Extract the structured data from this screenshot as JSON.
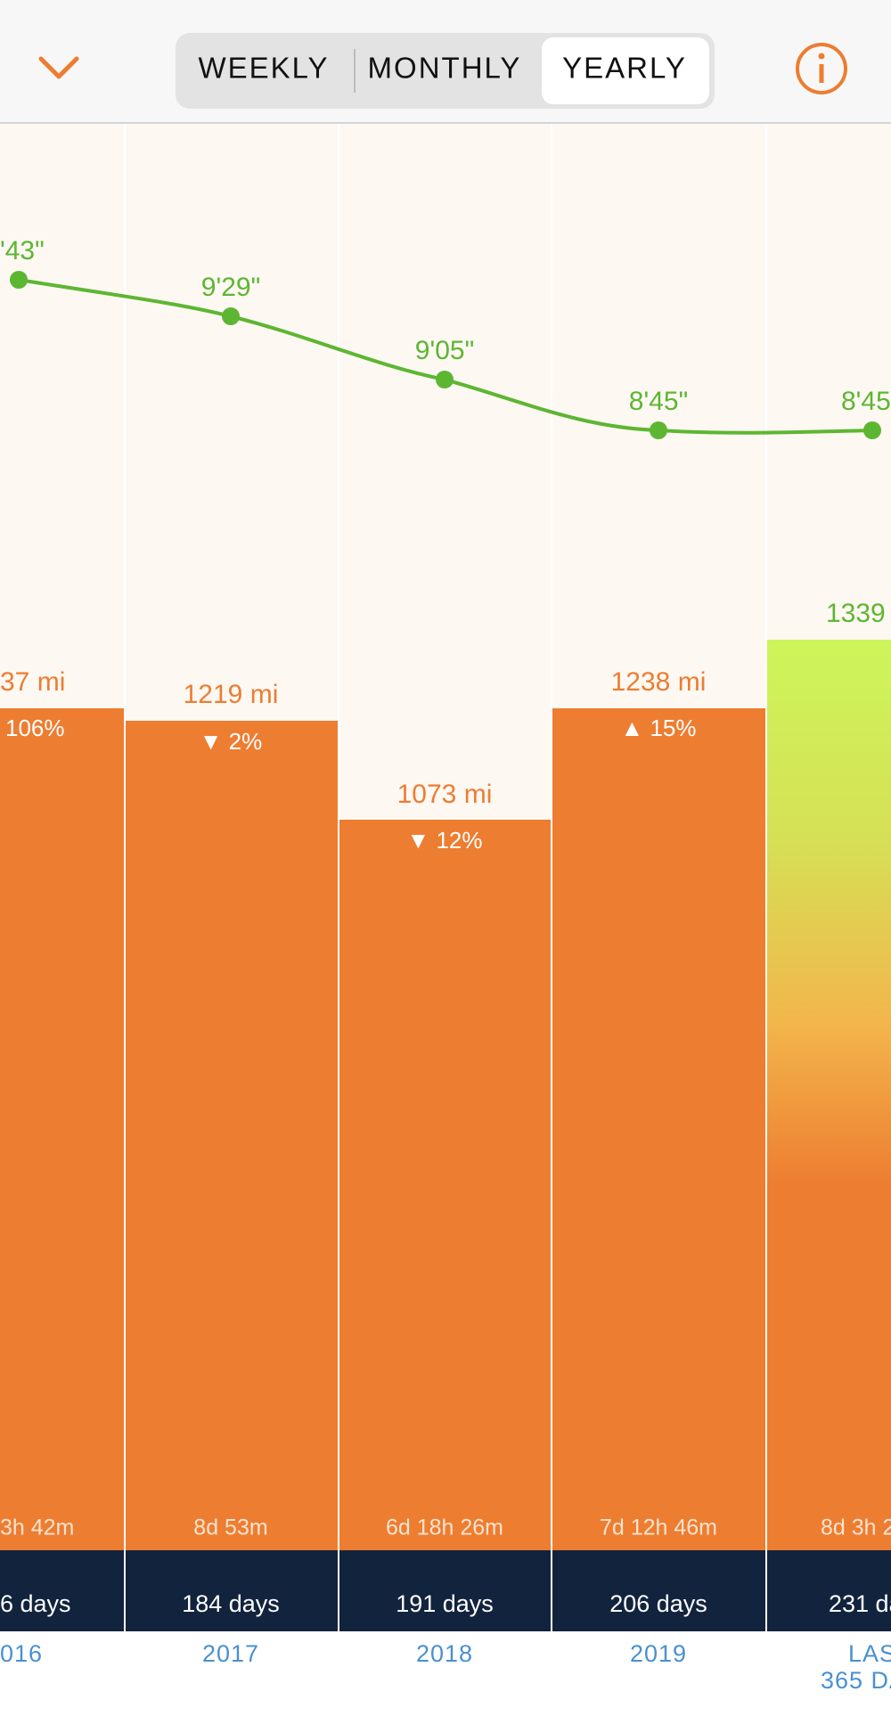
{
  "header": {
    "tabs": [
      "WEEKLY",
      "MONTHLY",
      "YEARLY"
    ],
    "selected_tab": "YEARLY"
  },
  "columns": [
    {
      "pace": "'43\"",
      "distance": "37 mi",
      "change": "106%",
      "time": "3h 42m",
      "days": "6 days",
      "period": [
        "016"
      ]
    },
    {
      "pace": "9'29\"",
      "distance": "1219 mi",
      "change": "▼ 2%",
      "time": "8d 53m",
      "days": "184 days",
      "period": [
        "2017"
      ]
    },
    {
      "pace": "9'05\"",
      "distance": "1073 mi",
      "change": "▼ 12%",
      "time": "6d 18h 26m",
      "days": "191 days",
      "period": [
        "2018"
      ]
    },
    {
      "pace": "8'45\"",
      "distance": "1238 mi",
      "change": "▲ 15%",
      "time": "7d 12h 46m",
      "days": "206 days",
      "period": [
        "2019"
      ]
    },
    {
      "pace": "8'45",
      "distance": "1339",
      "time": "8d 3h 2",
      "days": "231 da",
      "period": [
        "LAST",
        "365 DA"
      ]
    }
  ]
}
